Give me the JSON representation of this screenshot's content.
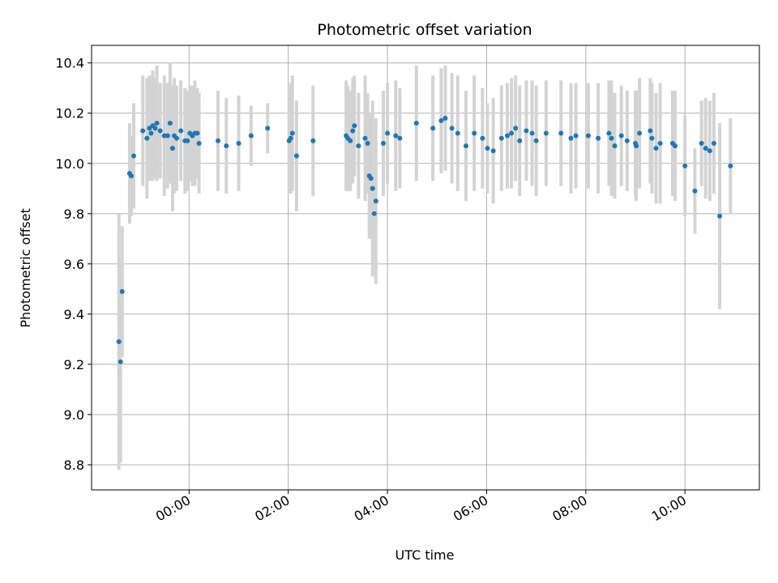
{
  "chart_data": {
    "type": "scatter",
    "title": "Photometric offset variation",
    "xlabel": "UTC time",
    "ylabel": "Photometric offset",
    "xlim": [
      "-01:58",
      "11:30"
    ],
    "ylim": [
      8.7,
      10.47
    ],
    "grid": true,
    "legend": "none",
    "point_color": "#1f77b4",
    "errorbar_color": "#d3d3d3",
    "x_ticks": [
      "00:00",
      "02:00",
      "04:00",
      "06:00",
      "08:00",
      "10:00"
    ],
    "y_ticks": [
      "8.8",
      "9.0",
      "9.2",
      "9.4",
      "9.6",
      "9.8",
      "10.0",
      "10.2",
      "10.4"
    ],
    "series": [
      {
        "x": [
          "-01:25",
          "-01:23",
          "-01:21",
          "-01:12",
          "-01:10",
          "-01:07",
          "-00:56",
          "-00:51",
          "-00:48",
          "-00:46",
          "-00:44",
          "-00:41",
          "-00:39",
          "-00:35",
          "-00:30",
          "-00:26",
          "-00:23",
          "-00:20",
          "-00:18",
          "-00:15",
          "-00:10",
          "-00:05",
          "-00:02",
          "00:01",
          "00:04",
          "00:07",
          "00:10",
          "00:12",
          "00:35",
          "00:45",
          "01:00",
          "01:15",
          "01:35",
          "02:01",
          "02:03",
          "02:05",
          "02:10",
          "02:30",
          "03:10",
          "03:12",
          "03:15",
          "03:18",
          "03:20",
          "03:25",
          "03:33",
          "03:36",
          "03:38",
          "03:40",
          "03:42",
          "03:44",
          "03:46",
          "03:55",
          "04:00",
          "04:10",
          "04:15",
          "04:35",
          "04:55",
          "05:05",
          "05:10",
          "05:18",
          "05:25",
          "05:35",
          "05:45",
          "05:55",
          "06:01",
          "06:08",
          "06:18",
          "06:25",
          "06:30",
          "06:35",
          "06:40",
          "06:48",
          "06:55",
          "07:00",
          "07:12",
          "07:30",
          "07:42",
          "07:48",
          "08:03",
          "08:15",
          "08:28",
          "08:31",
          "08:35",
          "08:43",
          "08:50",
          "09:00",
          "09:01",
          "09:05",
          "09:18",
          "09:20",
          "09:25",
          "09:30",
          "09:45",
          "09:48",
          "10:00",
          "10:12",
          "10:20",
          "10:25",
          "10:30",
          "10:35",
          "10:42",
          "10:55"
        ],
        "y": [
          9.29,
          9.21,
          9.49,
          9.96,
          9.95,
          10.03,
          10.13,
          10.1,
          10.14,
          10.12,
          10.15,
          10.14,
          10.16,
          10.13,
          10.11,
          10.11,
          10.16,
          10.06,
          10.11,
          10.1,
          10.13,
          10.09,
          10.09,
          10.12,
          10.11,
          10.12,
          10.12,
          10.08,
          10.09,
          10.07,
          10.08,
          10.11,
          10.14,
          10.09,
          10.1,
          10.12,
          10.03,
          10.09,
          10.11,
          10.1,
          10.09,
          10.13,
          10.15,
          10.07,
          10.1,
          10.08,
          9.95,
          9.94,
          9.9,
          9.8,
          9.85,
          10.08,
          10.12,
          10.11,
          10.1,
          10.16,
          10.14,
          10.17,
          10.18,
          10.14,
          10.12,
          10.07,
          10.12,
          10.1,
          10.06,
          10.05,
          10.1,
          10.11,
          10.12,
          10.14,
          10.09,
          10.13,
          10.12,
          10.09,
          10.12,
          10.12,
          10.1,
          10.11,
          10.11,
          10.1,
          10.12,
          10.1,
          10.07,
          10.11,
          10.09,
          10.08,
          10.07,
          10.12,
          10.13,
          10.1,
          10.06,
          10.08,
          10.08,
          10.07,
          9.99,
          9.89,
          10.08,
          10.06,
          10.05,
          10.08,
          9.79,
          9.99
        ],
        "yerr": [
          0.51,
          0.4,
          0.26,
          0.2,
          0.16,
          0.21,
          0.22,
          0.24,
          0.21,
          0.19,
          0.22,
          0.2,
          0.23,
          0.19,
          0.24,
          0.21,
          0.24,
          0.25,
          0.23,
          0.21,
          0.2,
          0.21,
          0.2,
          0.19,
          0.2,
          0.21,
          0.18,
          0.2,
          0.2,
          0.19,
          0.19,
          0.12,
          0.1,
          0.21,
          0.22,
          0.23,
          0.22,
          0.22,
          0.22,
          0.21,
          0.2,
          0.21,
          0.2,
          0.21,
          0.25,
          0.2,
          0.25,
          0.24,
          0.35,
          0.18,
          0.33,
          0.21,
          0.2,
          0.22,
          0.2,
          0.23,
          0.21,
          0.21,
          0.21,
          0.22,
          0.23,
          0.22,
          0.23,
          0.2,
          0.18,
          0.21,
          0.21,
          0.21,
          0.22,
          0.21,
          0.22,
          0.2,
          0.21,
          0.22,
          0.21,
          0.21,
          0.22,
          0.21,
          0.21,
          0.22,
          0.21,
          0.23,
          0.21,
          0.2,
          0.2,
          0.21,
          0.22,
          0.22,
          0.21,
          0.22,
          0.22,
          0.24,
          0.21,
          0.22,
          0.2,
          0.17,
          0.17,
          0.2,
          0.2,
          0.2,
          0.37,
          0.19
        ]
      }
    ]
  }
}
